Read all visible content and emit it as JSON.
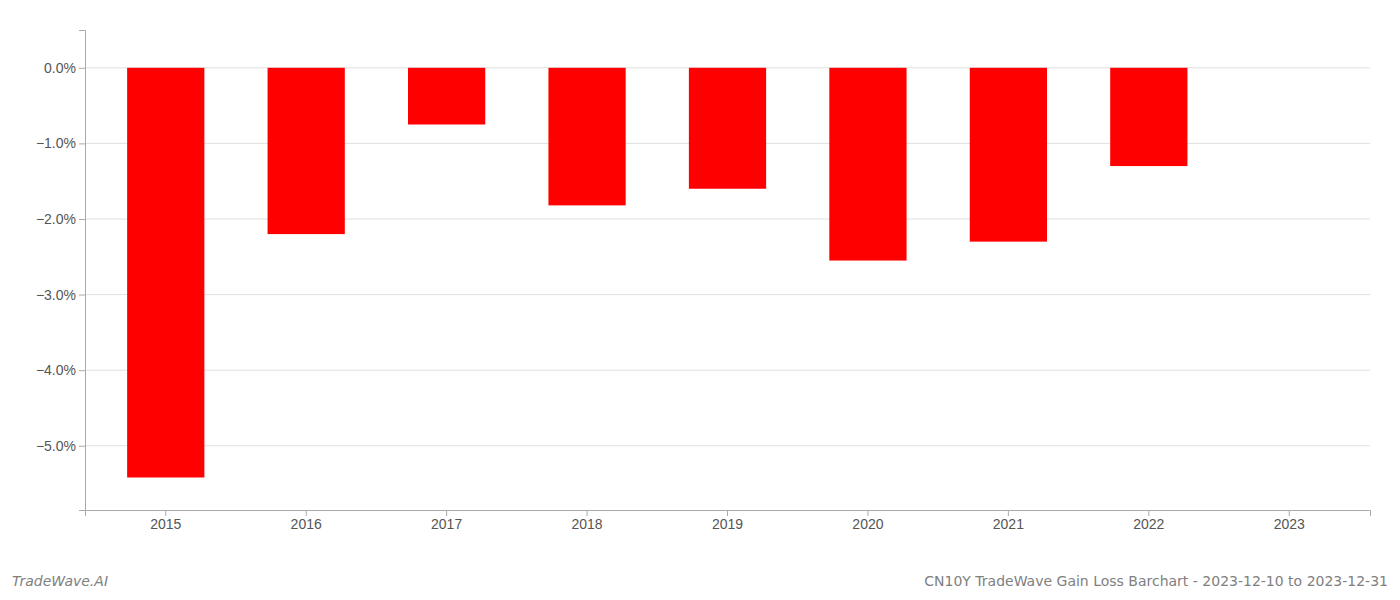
{
  "chart_data": {
    "type": "bar",
    "title": "CN10Y TradeWave Gain Loss Barchart - 2023-12-10 to 2023-12-31",
    "annotations": [
      "TradeWave.AI"
    ],
    "categories": [
      "2015",
      "2016",
      "2017",
      "2018",
      "2019",
      "2020",
      "2021",
      "2022",
      "2023"
    ],
    "values": [
      -5.42,
      -2.2,
      -0.75,
      -1.82,
      -1.6,
      -2.55,
      -2.3,
      -1.3,
      0.0
    ],
    "color": "#ff0000",
    "ylim": [
      -5.85,
      0.5
    ],
    "yticks": [
      {
        "value": 0.0,
        "label": "0.0%"
      },
      {
        "value": -1.0,
        "label": "−1.0%"
      },
      {
        "value": -2.0,
        "label": "−2.0%"
      },
      {
        "value": -3.0,
        "label": "−3.0%"
      },
      {
        "value": -4.0,
        "label": "−4.0%"
      },
      {
        "value": -5.0,
        "label": "−5.0%"
      }
    ],
    "grid": true
  }
}
